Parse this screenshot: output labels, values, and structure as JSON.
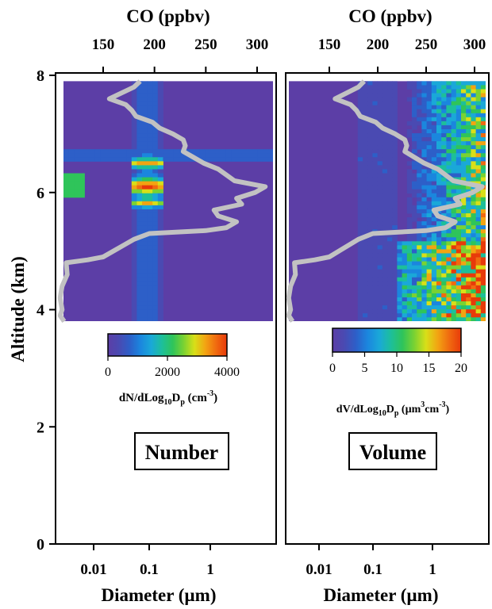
{
  "chart_data": {
    "type": "heatmap",
    "y_axis": {
      "label": "Altitude (km)",
      "ticks": [
        0,
        2,
        4,
        6,
        8
      ],
      "range": [
        0,
        8
      ]
    },
    "x_axis": {
      "label": "Diameter (µm)",
      "ticks": [
        0.01,
        0.1,
        1
      ],
      "tick_labels": [
        "0.01",
        "0.1",
        "1"
      ],
      "scale": "log",
      "range": [
        0.005,
        7
      ]
    },
    "top_axis": {
      "label": "CO (ppbv)",
      "ticks": [
        150,
        200,
        250,
        300
      ],
      "tick_labels": [
        "150",
        "200",
        "250",
        "300"
      ],
      "range": [
        100,
        310
      ]
    },
    "panels": [
      {
        "name": "Number",
        "colorbar_label_main": "dN/dLog",
        "colorbar_label_sub": "10",
        "colorbar_label_mid": "D",
        "colorbar_label_sub2": "p",
        "colorbar_label_tail": " (cm",
        "colorbar_label_sup": "-3",
        "colorbar_label_end": ")",
        "colorbar_ticks": [
          "0",
          "2000",
          "4000"
        ],
        "colorbar_range": [
          0,
          4000
        ]
      },
      {
        "name": "Volume",
        "colorbar_label_main": "dV/dLog",
        "colorbar_label_sub": "10",
        "colorbar_label_mid": "D",
        "colorbar_label_sub2": "p",
        "colorbar_label_tail": " (µm",
        "colorbar_label_sup": "3",
        "colorbar_label_tail2": "cm",
        "colorbar_label_sup2": "-3",
        "colorbar_label_end": ")",
        "colorbar_ticks": [
          "0",
          "5",
          "10",
          "15",
          "20"
        ],
        "colorbar_range": [
          0,
          20
        ]
      }
    ],
    "co_profile": {
      "altitude_km": [
        3.8,
        3.9,
        4.0,
        4.2,
        4.4,
        4.6,
        4.8,
        4.85,
        4.9,
        5.0,
        5.1,
        5.2,
        5.3,
        5.35,
        5.4,
        5.5,
        5.6,
        5.7,
        5.8,
        5.9,
        6.0,
        6.1,
        6.2,
        6.3,
        6.4,
        6.5,
        6.6,
        6.7,
        6.8,
        6.9,
        7.0,
        7.1,
        7.2,
        7.3,
        7.4,
        7.5,
        7.6,
        7.7,
        7.8,
        7.9
      ],
      "co_ppbv": [
        112,
        108,
        110,
        108,
        110,
        115,
        114,
        135,
        150,
        160,
        170,
        180,
        195,
        250,
        270,
        280,
        262,
        258,
        285,
        280,
        298,
        308,
        278,
        270,
        262,
        248,
        238,
        228,
        230,
        228,
        218,
        205,
        198,
        182,
        178,
        172,
        156,
        168,
        180,
        186
      ]
    },
    "colormap": [
      "#5c3ea6",
      "#4a4ab2",
      "#2d5fc8",
      "#1b86de",
      "#1aa8d8",
      "#1dbf9a",
      "#2fc45a",
      "#7ad232",
      "#d8df18",
      "#f2a412",
      "#f06a10",
      "#e83a0a"
    ]
  }
}
